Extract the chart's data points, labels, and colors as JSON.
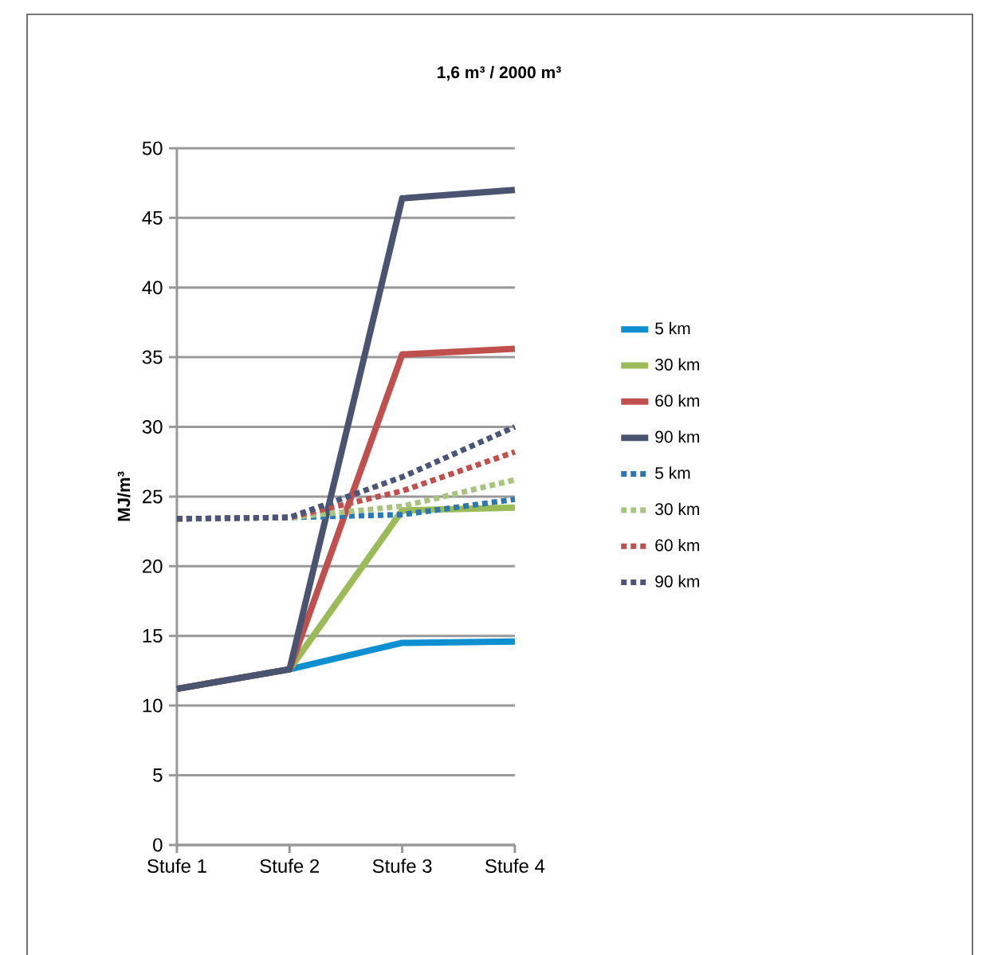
{
  "chart_data": {
    "type": "line",
    "title": "1,6 m³ / 2000 m³",
    "ylabel": "MJ/m³",
    "categories": [
      "Stufe 1",
      "Stufe 2",
      "Stufe 3",
      "Stufe 4"
    ],
    "ylim": [
      0,
      50
    ],
    "yticks": [
      0,
      5,
      10,
      15,
      20,
      25,
      30,
      35,
      40,
      45,
      50
    ],
    "grid": "y",
    "legend": "right",
    "marker": "none",
    "series": [
      {
        "name": "5 km",
        "color": "#0e8fd0",
        "line_style": "solid",
        "values": [
          11.2,
          12.6,
          14.5,
          14.6
        ]
      },
      {
        "name": "30 km",
        "color": "#9bbb59",
        "line_style": "solid",
        "values": [
          11.2,
          12.6,
          24.0,
          24.2
        ]
      },
      {
        "name": "60 km",
        "color": "#c0504d",
        "line_style": "solid",
        "values": [
          11.2,
          12.6,
          35.2,
          35.6
        ]
      },
      {
        "name": "90 km",
        "color": "#4a5370",
        "line_style": "solid",
        "values": [
          11.2,
          12.6,
          46.4,
          47.0
        ]
      },
      {
        "name": "5 km",
        "color": "#2a77b4",
        "line_style": "dotted",
        "values": [
          23.4,
          23.5,
          23.7,
          24.8
        ]
      },
      {
        "name": "30 km",
        "color": "#a9c47f",
        "line_style": "dotted",
        "values": [
          23.4,
          23.5,
          24.3,
          26.2
        ]
      },
      {
        "name": "60 km",
        "color": "#c0504d",
        "line_style": "dotted",
        "values": [
          23.4,
          23.5,
          25.4,
          28.2
        ]
      },
      {
        "name": "90 km",
        "color": "#4a5578",
        "line_style": "dotted",
        "values": [
          23.4,
          23.5,
          26.4,
          30.0
        ]
      }
    ]
  }
}
